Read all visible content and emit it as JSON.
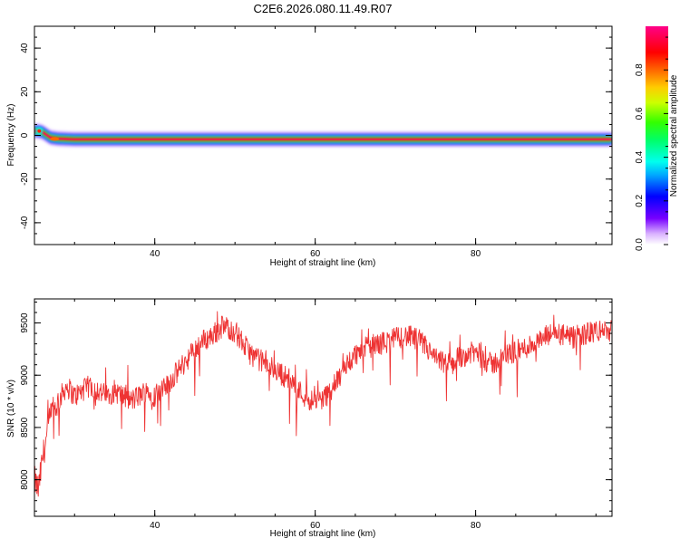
{
  "title": "C2E6.2026.080.11.49.R07",
  "chart_data": [
    {
      "type": "heatmap",
      "xlabel": "Height of straight line (km)",
      "ylabel": "Frequency (Hz)",
      "xlim": [
        25,
        97
      ],
      "ylim": [
        -50,
        50
      ],
      "xticks": [
        40,
        60,
        80
      ],
      "yticks": [
        -40,
        -20,
        0,
        20,
        40
      ],
      "ridge": {
        "x": [
          25.5,
          26,
          27,
          28,
          30,
          40,
          60,
          85,
          92,
          96
        ],
        "y": [
          2,
          1.5,
          -1,
          -1.5,
          -1.8,
          -1.8,
          -1.8,
          -1.8,
          -1.8,
          -1.8
        ]
      },
      "colorbar": {
        "label": "Normalized spectral amplitude",
        "range": [
          0.0,
          1.0
        ],
        "ticks": [
          "0.0",
          "0.2",
          "0.4",
          "0.6",
          "0.8"
        ],
        "tick_values": [
          0.0,
          0.2,
          0.4,
          0.6,
          0.8
        ]
      }
    },
    {
      "type": "line",
      "xlabel": "Height of straight line (km)",
      "ylabel": "SNR (10 * v/v)",
      "xlim": [
        25,
        97
      ],
      "ylim": [
        7650,
        9730
      ],
      "xticks": [
        40,
        60,
        80
      ],
      "yticks": [
        8000,
        8500,
        9000,
        9500
      ],
      "series": [
        {
          "name": "SNR",
          "color": "#ee3333",
          "x": [
            25.0,
            25.5,
            26.0,
            27.0,
            28.0,
            29.0,
            30.0,
            31.0,
            32.0,
            33.0,
            34.0,
            35.0,
            36.0,
            37.0,
            38.0,
            39.0,
            40.0,
            41.0,
            42.0,
            43.0,
            44.0,
            45.0,
            46.0,
            47.0,
            48.0,
            49.0,
            50.0,
            51.0,
            52.0,
            53.0,
            54.0,
            55.0,
            56.0,
            57.0,
            58.0,
            59.0,
            60.0,
            61.0,
            62.0,
            63.0,
            64.0,
            65.0,
            66.0,
            67.0,
            68.0,
            69.0,
            70.0,
            71.0,
            72.0,
            73.0,
            74.0,
            75.0,
            76.0,
            77.0,
            78.0,
            79.0,
            80.0,
            81.0,
            82.0,
            83.0,
            84.0,
            85.0,
            86.0,
            87.0,
            88.0,
            89.0,
            90.0,
            91.0,
            92.0,
            93.0,
            94.0,
            95.0,
            96.0,
            97.0
          ],
          "values": [
            8000,
            7900,
            8200,
            8600,
            8750,
            8900,
            8800,
            8850,
            8900,
            8850,
            8800,
            8850,
            8800,
            8750,
            8800,
            8850,
            8800,
            8850,
            8950,
            9050,
            9150,
            9250,
            9330,
            9370,
            9440,
            9460,
            9420,
            9300,
            9200,
            9150,
            9100,
            9050,
            9000,
            8950,
            8850,
            8780,
            8750,
            8780,
            8850,
            8980,
            9100,
            9200,
            9250,
            9280,
            9300,
            9320,
            9350,
            9380,
            9360,
            9330,
            9250,
            9150,
            9120,
            9100,
            9180,
            9200,
            9220,
            9150,
            9100,
            9150,
            9200,
            9230,
            9250,
            9300,
            9320,
            9380,
            9400,
            9380,
            9350,
            9380,
            9400,
            9420,
            9430,
            9420
          ]
        }
      ]
    }
  ]
}
